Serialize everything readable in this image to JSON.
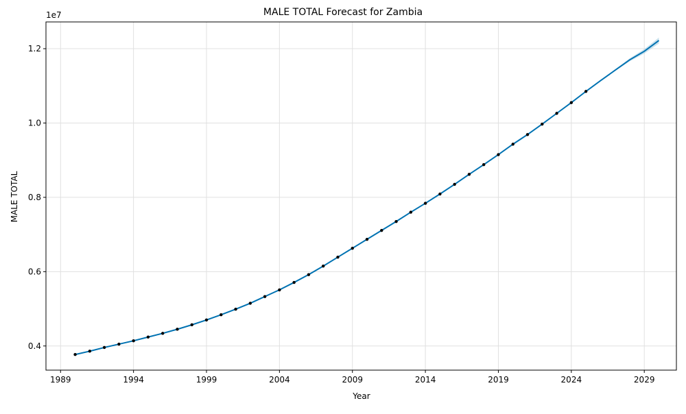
{
  "chart_data": {
    "type": "line",
    "title": "MALE TOTAL Forecast for Zambia",
    "xlabel": "Year",
    "ylabel": "MALE TOTAL",
    "y_scale_label": "1e7",
    "x_ticks": [
      1989,
      1994,
      1999,
      2004,
      2009,
      2014,
      2019,
      2024,
      2029
    ],
    "y_ticks": [
      0.4,
      0.6,
      0.8,
      1.0,
      1.2
    ],
    "x_tick_labels": [
      "1989",
      "1994",
      "1999",
      "2004",
      "2009",
      "2014",
      "2019",
      "2024",
      "2029"
    ],
    "y_tick_labels": [
      "0.4",
      "0.6",
      "0.8",
      "1.0",
      "1.2"
    ],
    "xlim": [
      1988.0,
      2031.2
    ],
    "ylim": [
      0.335,
      1.272
    ],
    "grid": true,
    "observed": {
      "x": [
        1990,
        1991,
        1992,
        1993,
        1994,
        1995,
        1996,
        1997,
        1998,
        1999,
        2000,
        2001,
        2002,
        2003,
        2004,
        2005,
        2006,
        2007,
        2008,
        2009,
        2010,
        2011,
        2012,
        2013,
        2014,
        2015,
        2016,
        2017,
        2018,
        2019,
        2020,
        2021,
        2022,
        2023,
        2024,
        2025
      ],
      "y": [
        0.377,
        0.386,
        0.396,
        0.405,
        0.414,
        0.424,
        0.434,
        0.445,
        0.457,
        0.47,
        0.484,
        0.499,
        0.515,
        0.533,
        0.551,
        0.571,
        0.592,
        0.615,
        0.639,
        0.663,
        0.687,
        0.711,
        0.735,
        0.76,
        0.784,
        0.809,
        0.835,
        0.862,
        0.888,
        0.915,
        0.943,
        0.969,
        0.997,
        1.026,
        1.055,
        1.085
      ]
    },
    "forecast": {
      "x": [
        1990,
        1991,
        1992,
        1993,
        1994,
        1995,
        1996,
        1997,
        1998,
        1999,
        2000,
        2001,
        2002,
        2003,
        2004,
        2005,
        2006,
        2007,
        2008,
        2009,
        2010,
        2011,
        2012,
        2013,
        2014,
        2015,
        2016,
        2017,
        2018,
        2019,
        2020,
        2021,
        2022,
        2023,
        2024,
        2025,
        2026,
        2027,
        2028,
        2029,
        2030
      ],
      "y": [
        0.377,
        0.386,
        0.396,
        0.405,
        0.414,
        0.424,
        0.434,
        0.445,
        0.457,
        0.47,
        0.484,
        0.499,
        0.515,
        0.533,
        0.551,
        0.571,
        0.592,
        0.615,
        0.639,
        0.663,
        0.687,
        0.711,
        0.735,
        0.76,
        0.784,
        0.809,
        0.835,
        0.862,
        0.888,
        0.915,
        0.943,
        0.969,
        0.997,
        1.026,
        1.055,
        1.085,
        1.114,
        1.142,
        1.17,
        1.193,
        1.222
      ],
      "lower": [
        0.377,
        0.386,
        0.396,
        0.405,
        0.414,
        0.424,
        0.434,
        0.445,
        0.457,
        0.47,
        0.484,
        0.499,
        0.515,
        0.533,
        0.551,
        0.571,
        0.592,
        0.615,
        0.639,
        0.663,
        0.687,
        0.711,
        0.735,
        0.76,
        0.784,
        0.809,
        0.835,
        0.862,
        0.888,
        0.915,
        0.943,
        0.969,
        0.997,
        1.026,
        1.055,
        1.085,
        1.113,
        1.14,
        1.166,
        1.187,
        1.214
      ],
      "upper": [
        0.377,
        0.386,
        0.396,
        0.405,
        0.414,
        0.424,
        0.434,
        0.445,
        0.457,
        0.47,
        0.484,
        0.499,
        0.515,
        0.533,
        0.551,
        0.571,
        0.592,
        0.615,
        0.639,
        0.663,
        0.687,
        0.711,
        0.735,
        0.76,
        0.784,
        0.809,
        0.835,
        0.862,
        0.888,
        0.915,
        0.943,
        0.969,
        0.997,
        1.026,
        1.055,
        1.085,
        1.115,
        1.144,
        1.174,
        1.199,
        1.23
      ]
    },
    "colors": {
      "line": "#0072b2",
      "band": "#a6cee3",
      "points": "#000000",
      "grid": "#e0e0e0",
      "axis": "#000000"
    }
  }
}
